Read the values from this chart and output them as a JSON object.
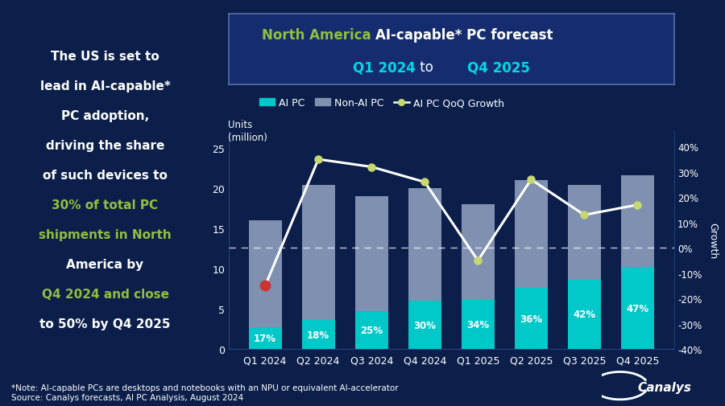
{
  "quarters": [
    "Q1 2024",
    "Q2 2024",
    "Q3 2024",
    "Q4 2024",
    "Q1 2025",
    "Q2 2025",
    "Q3 2025",
    "Q4 2025"
  ],
  "ai_pc": [
    2.72,
    3.6,
    4.75,
    6.0,
    6.12,
    7.56,
    8.61,
    10.17
  ],
  "non_ai_pc": [
    13.28,
    16.8,
    14.25,
    14.0,
    11.88,
    13.44,
    11.79,
    11.43
  ],
  "ai_share_pct": [
    "17%",
    "18%",
    "25%",
    "30%",
    "34%",
    "36%",
    "42%",
    "47%"
  ],
  "qoq_growth": [
    -15,
    35,
    32,
    26,
    -5,
    27,
    13,
    17
  ],
  "bg_color": "#0c1f4a",
  "bar_ai_color": "#00c8c8",
  "bar_nonai_color": "#8090b0",
  "line_color": "#ffffff",
  "line_marker_color": "#c8d870",
  "first_marker_color": "#cc3333",
  "title_color_green": "#90c040",
  "title_color_white": "#ffffff",
  "title_color_cyan": "#00d8e8",
  "ylabel_left": "Units\n(million)",
  "ylabel_right": "Growth",
  "left_text_white": "#ffffff",
  "left_text_green": "#90c040",
  "note_text": "*Note: AI-capable PCs are desktops and notebooks with an NPU or equivalent AI-accelerator\nSource: Canalys forecasts, AI PC Analysis, August 2024",
  "ylim_left": [
    0,
    27
  ],
  "ylim_right": [
    -40,
    46
  ],
  "title_box_color": "#152d6e",
  "title_box_edge": "#5570aa"
}
